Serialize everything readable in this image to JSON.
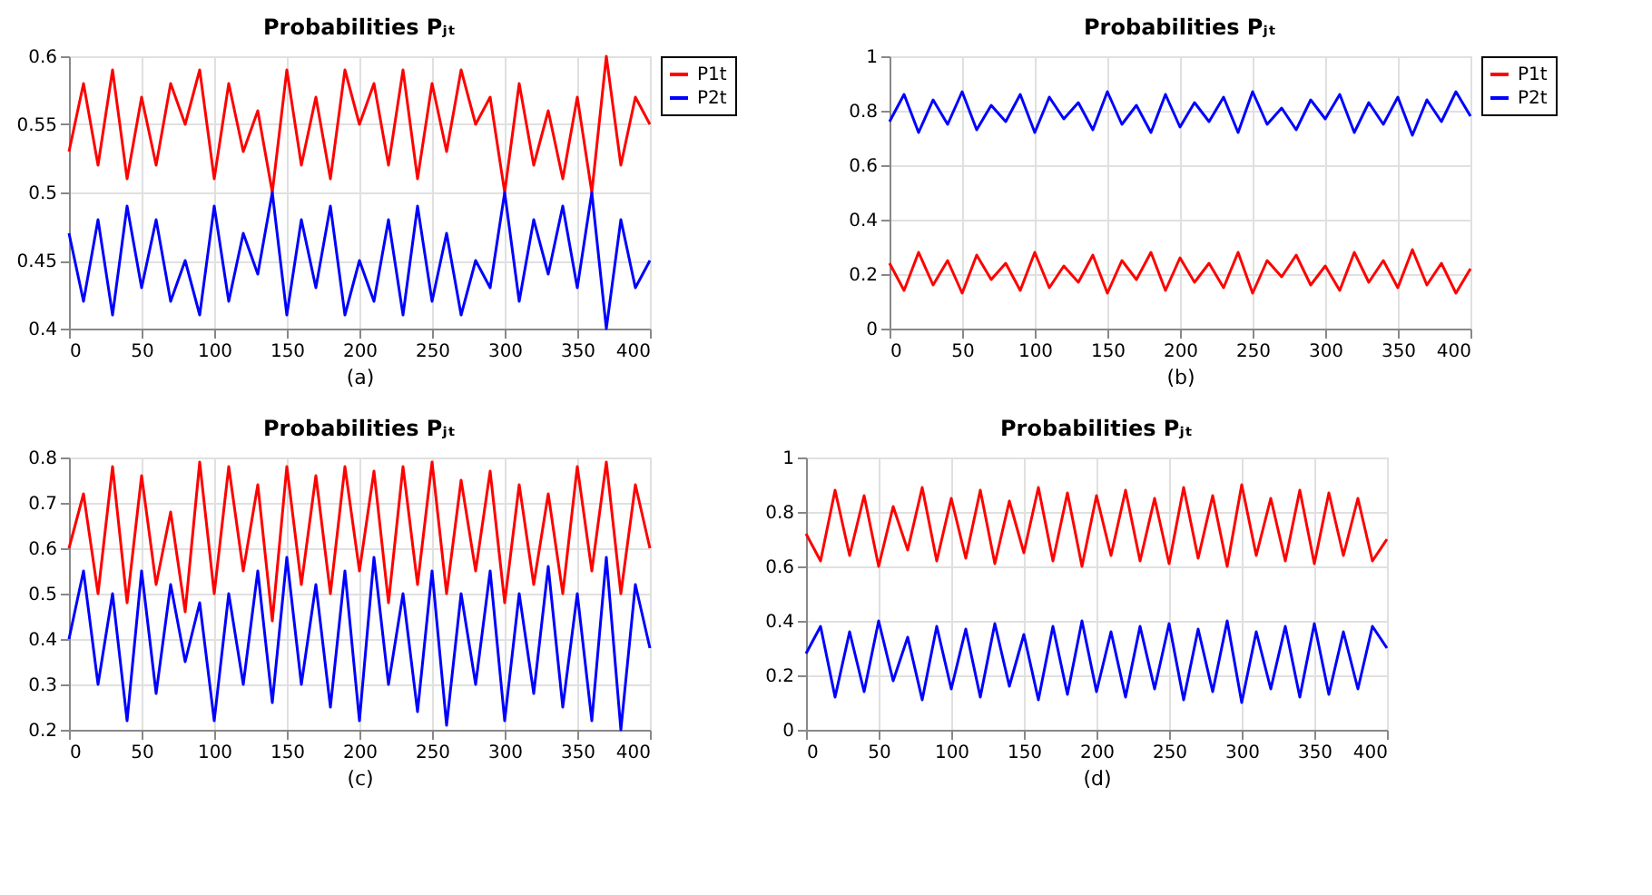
{
  "chart_data": [
    {
      "type": "line",
      "title": "Probabilities Pⱼₜ",
      "xlabel": "(a)",
      "xlim": [
        0,
        400
      ],
      "xticks": [
        0,
        50,
        100,
        150,
        200,
        250,
        300,
        350,
        400
      ],
      "ylim": [
        0.4,
        0.6
      ],
      "yticks": [
        0.4,
        0.45,
        0.5,
        0.55,
        0.6
      ],
      "grid": true,
      "legend": "top right",
      "line_style": "solid",
      "x": [
        0,
        10,
        20,
        30,
        40,
        50,
        60,
        70,
        80,
        90,
        100,
        110,
        120,
        130,
        140,
        150,
        160,
        170,
        180,
        190,
        200,
        210,
        220,
        230,
        240,
        250,
        260,
        270,
        280,
        290,
        300,
        310,
        320,
        330,
        340,
        350,
        360,
        370,
        380,
        390,
        400
      ],
      "series": [
        {
          "name": "P1t",
          "color": "#ff0000",
          "values": [
            0.53,
            0.58,
            0.52,
            0.59,
            0.51,
            0.57,
            0.52,
            0.58,
            0.55,
            0.59,
            0.51,
            0.58,
            0.53,
            0.56,
            0.5,
            0.59,
            0.52,
            0.57,
            0.51,
            0.59,
            0.55,
            0.58,
            0.52,
            0.59,
            0.51,
            0.58,
            0.53,
            0.59,
            0.55,
            0.57,
            0.5,
            0.58,
            0.52,
            0.56,
            0.51,
            0.57,
            0.5,
            0.6,
            0.52,
            0.57,
            0.55
          ]
        },
        {
          "name": "P2t",
          "color": "#0000ff",
          "values": [
            0.47,
            0.42,
            0.48,
            0.41,
            0.49,
            0.43,
            0.48,
            0.42,
            0.45,
            0.41,
            0.49,
            0.42,
            0.47,
            0.44,
            0.5,
            0.41,
            0.48,
            0.43,
            0.49,
            0.41,
            0.45,
            0.42,
            0.48,
            0.41,
            0.49,
            0.42,
            0.47,
            0.41,
            0.45,
            0.43,
            0.5,
            0.42,
            0.48,
            0.44,
            0.49,
            0.43,
            0.5,
            0.4,
            0.48,
            0.43,
            0.45
          ]
        }
      ]
    },
    {
      "type": "line",
      "title": "Probabilities Pⱼₜ",
      "xlabel": "(b)",
      "xlim": [
        0,
        400
      ],
      "xticks": [
        0,
        50,
        100,
        150,
        200,
        250,
        300,
        350,
        400
      ],
      "ylim": [
        0,
        1
      ],
      "yticks": [
        0,
        0.2,
        0.4,
        0.6,
        0.8,
        1
      ],
      "grid": true,
      "legend": "top right",
      "line_style": "solid",
      "x": [
        0,
        10,
        20,
        30,
        40,
        50,
        60,
        70,
        80,
        90,
        100,
        110,
        120,
        130,
        140,
        150,
        160,
        170,
        180,
        190,
        200,
        210,
        220,
        230,
        240,
        250,
        260,
        270,
        280,
        290,
        300,
        310,
        320,
        330,
        340,
        350,
        360,
        370,
        380,
        390,
        400
      ],
      "series": [
        {
          "name": "P1t",
          "color": "#ff0000",
          "values": [
            0.24,
            0.14,
            0.28,
            0.16,
            0.25,
            0.13,
            0.27,
            0.18,
            0.24,
            0.14,
            0.28,
            0.15,
            0.23,
            0.17,
            0.27,
            0.13,
            0.25,
            0.18,
            0.28,
            0.14,
            0.26,
            0.17,
            0.24,
            0.15,
            0.28,
            0.13,
            0.25,
            0.19,
            0.27,
            0.16,
            0.23,
            0.14,
            0.28,
            0.17,
            0.25,
            0.15,
            0.29,
            0.16,
            0.24,
            0.13,
            0.22
          ]
        },
        {
          "name": "P2t",
          "color": "#0000ff",
          "values": [
            0.76,
            0.86,
            0.72,
            0.84,
            0.75,
            0.87,
            0.73,
            0.82,
            0.76,
            0.86,
            0.72,
            0.85,
            0.77,
            0.83,
            0.73,
            0.87,
            0.75,
            0.82,
            0.72,
            0.86,
            0.74,
            0.83,
            0.76,
            0.85,
            0.72,
            0.87,
            0.75,
            0.81,
            0.73,
            0.84,
            0.77,
            0.86,
            0.72,
            0.83,
            0.75,
            0.85,
            0.71,
            0.84,
            0.76,
            0.87,
            0.78
          ]
        }
      ]
    },
    {
      "type": "line",
      "title": "Probabilities Pⱼₜ",
      "xlabel": "(c)",
      "xlim": [
        0,
        400
      ],
      "xticks": [
        0,
        50,
        100,
        150,
        200,
        250,
        300,
        350,
        400
      ],
      "ylim": [
        0.2,
        0.8
      ],
      "yticks": [
        0.2,
        0.3,
        0.4,
        0.5,
        0.6,
        0.7,
        0.8
      ],
      "grid": true,
      "line_style": "solid",
      "x": [
        0,
        10,
        20,
        30,
        40,
        50,
        60,
        70,
        80,
        90,
        100,
        110,
        120,
        130,
        140,
        150,
        160,
        170,
        180,
        190,
        200,
        210,
        220,
        230,
        240,
        250,
        260,
        270,
        280,
        290,
        300,
        310,
        320,
        330,
        340,
        350,
        360,
        370,
        380,
        390,
        400
      ],
      "series": [
        {
          "color": "#ff0000",
          "values": [
            0.6,
            0.72,
            0.5,
            0.78,
            0.48,
            0.76,
            0.52,
            0.68,
            0.46,
            0.79,
            0.5,
            0.78,
            0.55,
            0.74,
            0.44,
            0.78,
            0.52,
            0.76,
            0.5,
            0.78,
            0.55,
            0.77,
            0.48,
            0.78,
            0.52,
            0.79,
            0.5,
            0.75,
            0.55,
            0.77,
            0.48,
            0.74,
            0.52,
            0.72,
            0.5,
            0.78,
            0.55,
            0.79,
            0.5,
            0.74,
            0.6
          ]
        },
        {
          "color": "#0000ff",
          "values": [
            0.4,
            0.55,
            0.3,
            0.5,
            0.22,
            0.55,
            0.28,
            0.52,
            0.35,
            0.48,
            0.22,
            0.5,
            0.3,
            0.55,
            0.26,
            0.58,
            0.3,
            0.52,
            0.25,
            0.55,
            0.22,
            0.58,
            0.3,
            0.5,
            0.24,
            0.55,
            0.21,
            0.5,
            0.3,
            0.55,
            0.22,
            0.5,
            0.28,
            0.56,
            0.25,
            0.5,
            0.22,
            0.58,
            0.2,
            0.52,
            0.38
          ]
        }
      ]
    },
    {
      "type": "line",
      "title": "Probabilities Pⱼₜ",
      "xlabel": "(d)",
      "xlim": [
        0,
        400
      ],
      "xticks": [
        0,
        50,
        100,
        150,
        200,
        250,
        300,
        350,
        400
      ],
      "ylim": [
        0,
        1
      ],
      "yticks": [
        0,
        0.2,
        0.4,
        0.6,
        0.8,
        1
      ],
      "grid": true,
      "line_style": "solid",
      "x": [
        0,
        10,
        20,
        30,
        40,
        50,
        60,
        70,
        80,
        90,
        100,
        110,
        120,
        130,
        140,
        150,
        160,
        170,
        180,
        190,
        200,
        210,
        220,
        230,
        240,
        250,
        260,
        270,
        280,
        290,
        300,
        310,
        320,
        330,
        340,
        350,
        360,
        370,
        380,
        390,
        400
      ],
      "series": [
        {
          "color": "#ff0000",
          "values": [
            0.72,
            0.62,
            0.88,
            0.64,
            0.86,
            0.6,
            0.82,
            0.66,
            0.89,
            0.62,
            0.85,
            0.63,
            0.88,
            0.61,
            0.84,
            0.65,
            0.89,
            0.62,
            0.87,
            0.6,
            0.86,
            0.64,
            0.88,
            0.62,
            0.85,
            0.61,
            0.89,
            0.63,
            0.86,
            0.6,
            0.9,
            0.64,
            0.85,
            0.62,
            0.88,
            0.61,
            0.87,
            0.64,
            0.85,
            0.62,
            0.7
          ]
        },
        {
          "color": "#0000ff",
          "values": [
            0.28,
            0.38,
            0.12,
            0.36,
            0.14,
            0.4,
            0.18,
            0.34,
            0.11,
            0.38,
            0.15,
            0.37,
            0.12,
            0.39,
            0.16,
            0.35,
            0.11,
            0.38,
            0.13,
            0.4,
            0.14,
            0.36,
            0.12,
            0.38,
            0.15,
            0.39,
            0.11,
            0.37,
            0.14,
            0.4,
            0.1,
            0.36,
            0.15,
            0.38,
            0.12,
            0.39,
            0.13,
            0.36,
            0.15,
            0.38,
            0.3
          ]
        }
      ]
    }
  ]
}
